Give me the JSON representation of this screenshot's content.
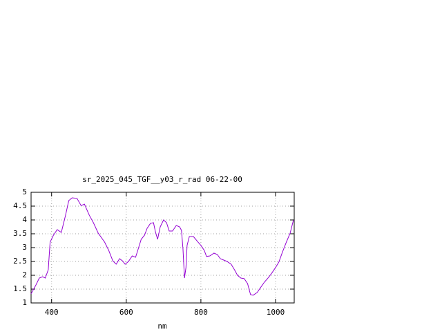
{
  "chart_data": {
    "type": "line",
    "title": "sr_2025_045_TGF__y03_r_rad 06-22-00",
    "x_label": "nm",
    "color": "#9400d3",
    "grid": true,
    "xlim": [
      345,
      1050
    ],
    "ylim": [
      1,
      5
    ],
    "xticks": [
      400,
      600,
      800,
      1000
    ],
    "yticks": [
      1,
      1.5,
      2,
      2.5,
      3,
      3.5,
      4,
      4.5,
      5
    ],
    "x": [
      345,
      358,
      367,
      376,
      383,
      391,
      396,
      405,
      415,
      426,
      437,
      446,
      455,
      468,
      479,
      488,
      501,
      512,
      525,
      542,
      553,
      564,
      573,
      582,
      590,
      597,
      606,
      616,
      625,
      632,
      640,
      649,
      656,
      665,
      673,
      678,
      684,
      691,
      700,
      708,
      715,
      724,
      734,
      743,
      748,
      752,
      756,
      760,
      763,
      769,
      780,
      791,
      800,
      809,
      815,
      824,
      835,
      844,
      852,
      870,
      881,
      890,
      898,
      907,
      916,
      925,
      933,
      940,
      951,
      958,
      970,
      981,
      990,
      1000,
      1009,
      1018,
      1029,
      1039,
      1048
    ],
    "values": [
      1.33,
      1.65,
      1.9,
      1.95,
      1.9,
      2.2,
      3.2,
      3.45,
      3.65,
      3.55,
      4.15,
      4.7,
      4.8,
      4.78,
      4.52,
      4.57,
      4.17,
      3.9,
      3.52,
      3.2,
      2.9,
      2.52,
      2.4,
      2.6,
      2.52,
      2.4,
      2.5,
      2.7,
      2.65,
      2.95,
      3.3,
      3.45,
      3.7,
      3.88,
      3.9,
      3.58,
      3.3,
      3.75,
      4.0,
      3.9,
      3.6,
      3.6,
      3.8,
      3.75,
      3.62,
      2.95,
      1.9,
      2.28,
      3.08,
      3.4,
      3.4,
      3.22,
      3.08,
      2.9,
      2.68,
      2.7,
      2.8,
      2.75,
      2.6,
      2.5,
      2.4,
      2.2,
      2.0,
      1.9,
      1.88,
      1.7,
      1.3,
      1.28,
      1.38,
      1.52,
      1.75,
      1.92,
      2.08,
      2.28,
      2.48,
      2.82,
      3.2,
      3.52,
      4.0
    ]
  }
}
